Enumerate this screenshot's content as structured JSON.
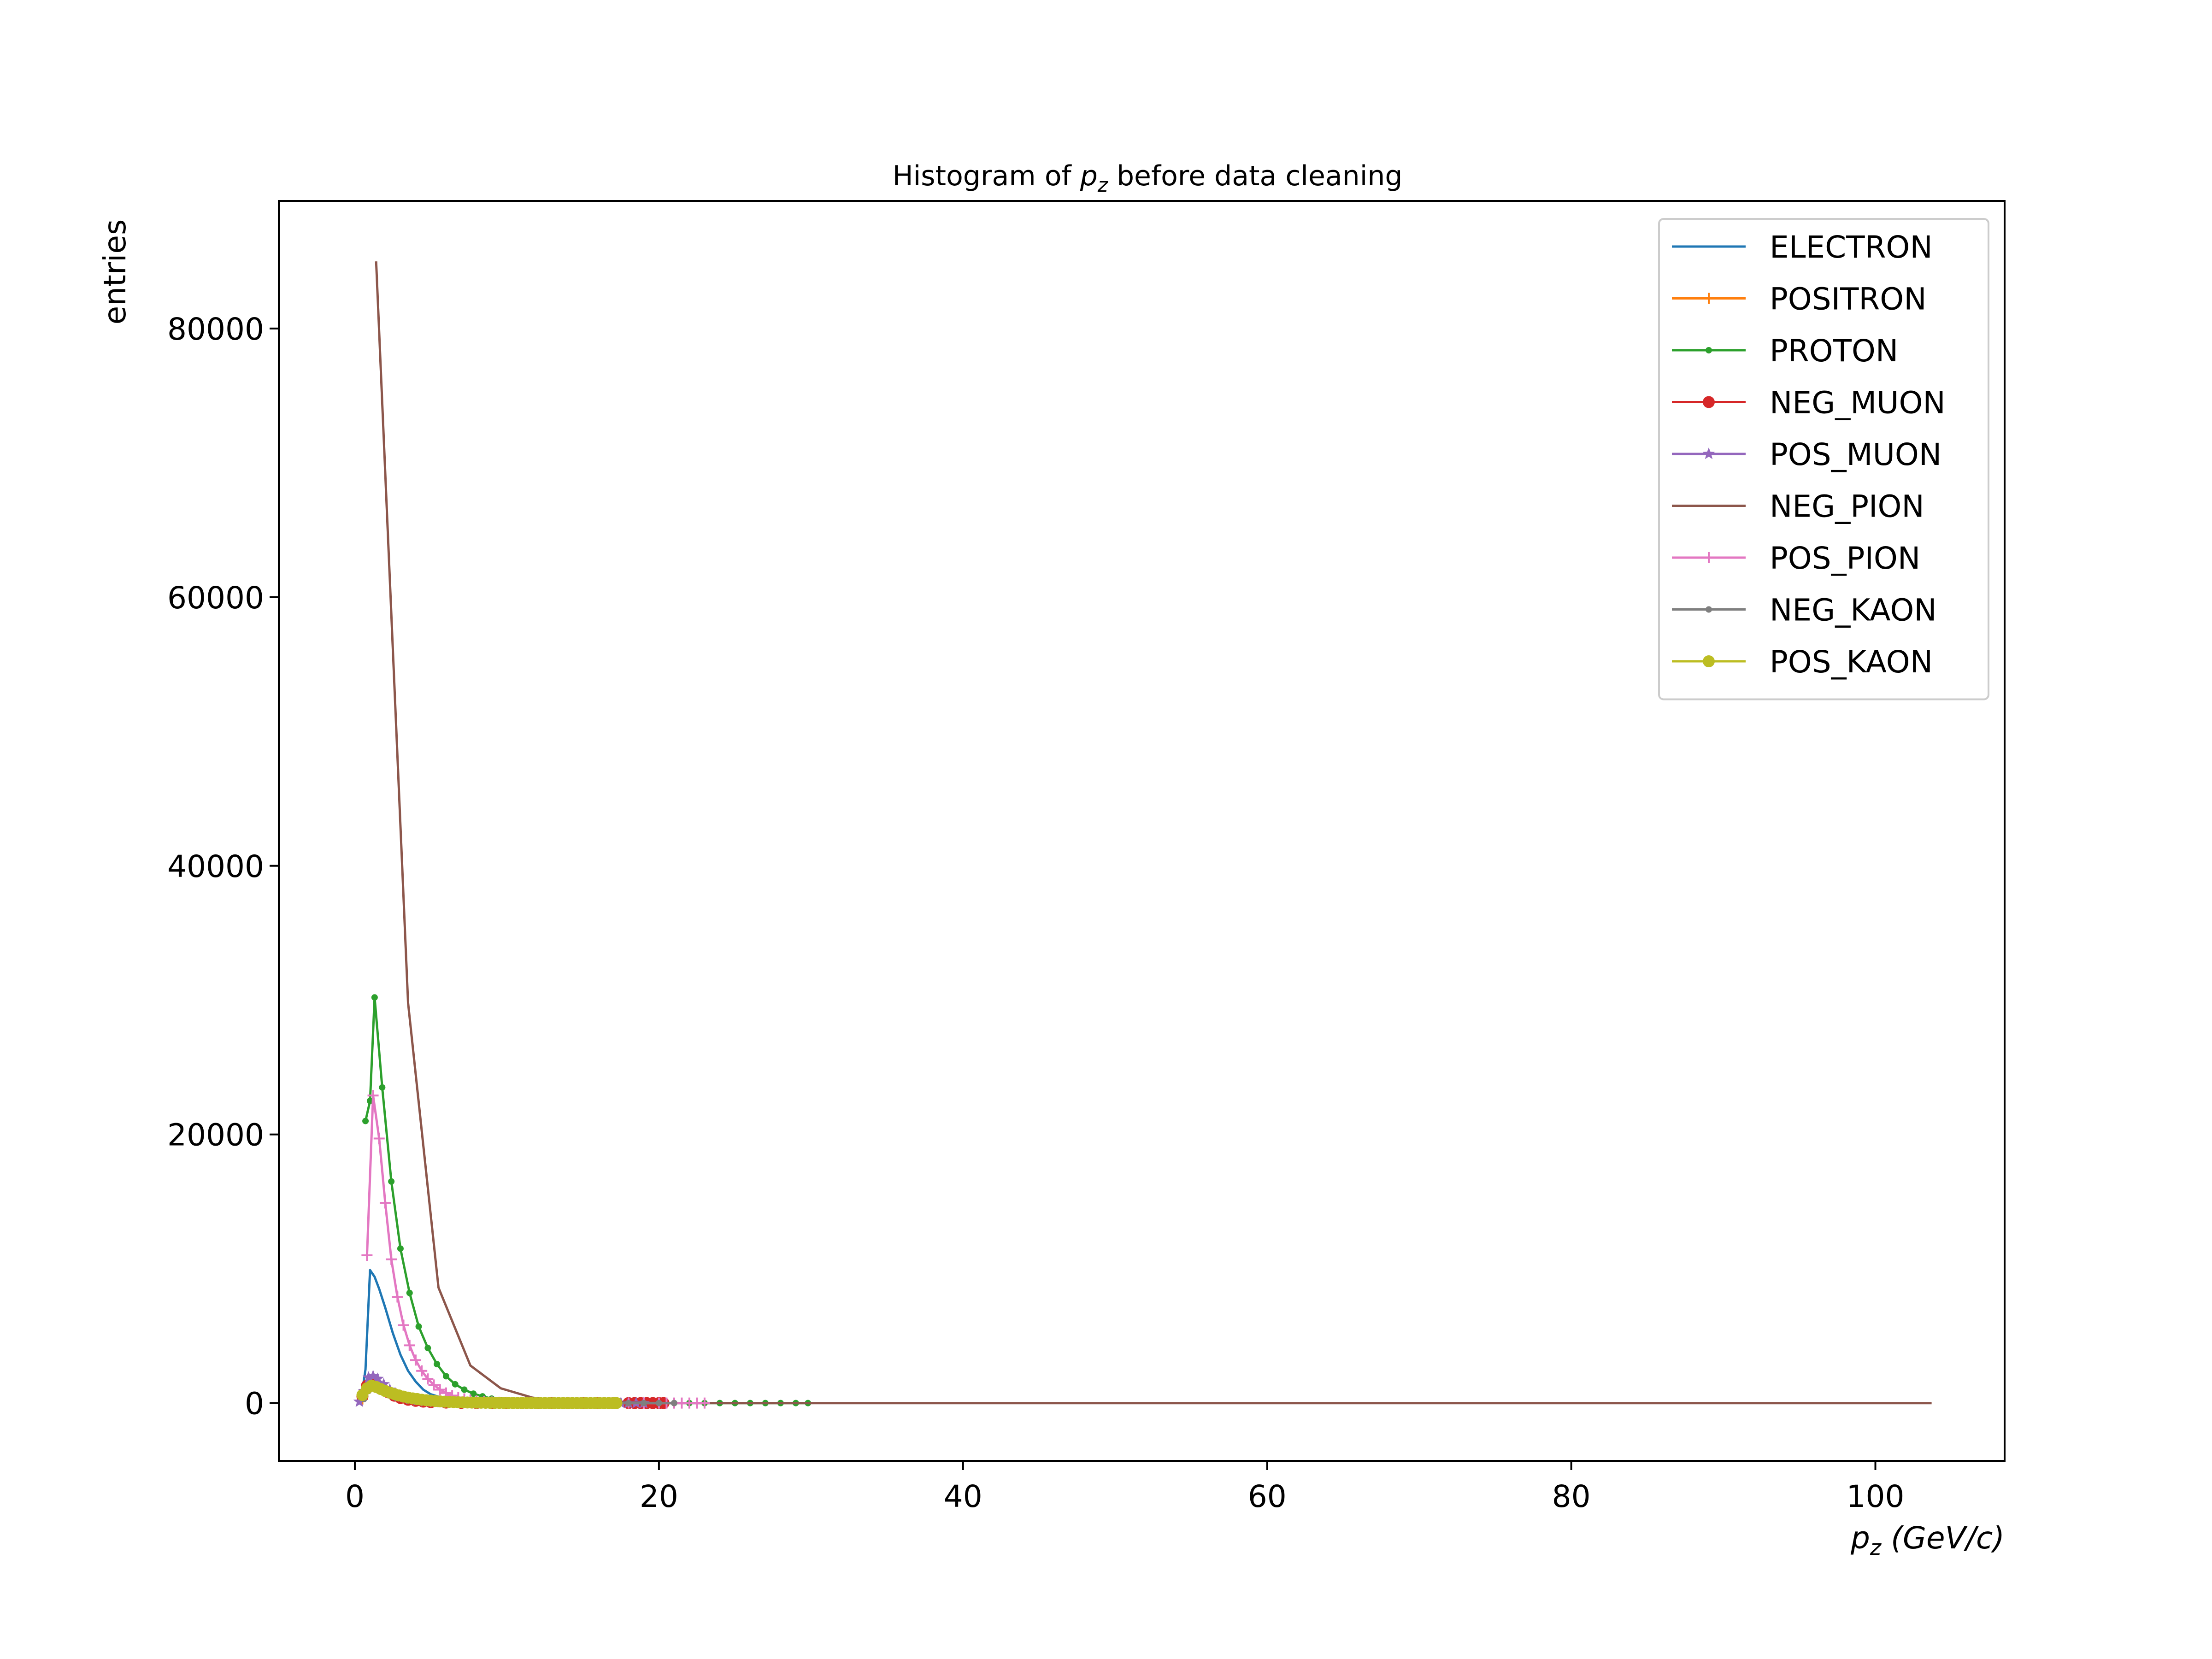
{
  "chart_data": {
    "type": "line",
    "title_main": "Histogram of ",
    "title_var": "p",
    "title_sub": "z",
    "title_rest": " before data cleaning",
    "xlabel_var": "p",
    "xlabel_sub": "z",
    "xlabel_unit": " (GeV/c)",
    "ylabel": "entries",
    "xlim": [
      -5,
      108.5
    ],
    "ylim": [
      -4300,
      89500
    ],
    "xticks": [
      "0",
      "20",
      "40",
      "60",
      "80",
      "100"
    ],
    "yticks": [
      "0",
      "20000",
      "40000",
      "60000",
      "80000"
    ],
    "legend_position": "upper right",
    "grid": false,
    "series": [
      {
        "name": "ELECTRON",
        "color": "#1f77b4",
        "marker": "none",
        "points": [
          [
            0.4,
            200
          ],
          [
            0.7,
            2500
          ],
          [
            1.0,
            9900
          ],
          [
            1.3,
            9400
          ],
          [
            1.6,
            8500
          ],
          [
            2.0,
            7100
          ],
          [
            2.5,
            5200
          ],
          [
            3.0,
            3600
          ],
          [
            3.5,
            2400
          ],
          [
            4.0,
            1600
          ],
          [
            4.5,
            1000
          ],
          [
            5.0,
            650
          ],
          [
            6.0,
            300
          ],
          [
            7.0,
            150
          ],
          [
            8.0,
            80
          ],
          [
            9.0,
            40
          ],
          [
            10.0,
            20
          ],
          [
            12.0,
            10
          ],
          [
            14.0,
            5
          ],
          [
            16.0,
            0
          ],
          [
            20.0,
            0
          ]
        ]
      },
      {
        "name": "POSITRON",
        "color": "#ff7f0e",
        "marker": "plus",
        "points": [
          [
            0.5,
            300
          ],
          [
            1.0,
            1600
          ],
          [
            1.5,
            1300
          ],
          [
            2.0,
            900
          ],
          [
            2.5,
            600
          ],
          [
            3.0,
            380
          ],
          [
            3.5,
            250
          ],
          [
            4.0,
            160
          ],
          [
            5.0,
            80
          ],
          [
            6.0,
            40
          ],
          [
            7.0,
            20
          ],
          [
            8.0,
            10
          ],
          [
            10.0,
            5
          ],
          [
            12.0,
            0
          ],
          [
            14.0,
            0
          ],
          [
            16.0,
            0
          ],
          [
            18.0,
            0
          ],
          [
            20.0,
            0
          ]
        ]
      },
      {
        "name": "PROTON",
        "color": "#2ca02c",
        "marker": "dot",
        "points": [
          [
            0.7,
            21000
          ],
          [
            1.0,
            22500
          ],
          [
            1.3,
            30200
          ],
          [
            1.8,
            23500
          ],
          [
            2.4,
            16500
          ],
          [
            3.0,
            11500
          ],
          [
            3.6,
            8200
          ],
          [
            4.2,
            5700
          ],
          [
            4.8,
            4100
          ],
          [
            5.4,
            2900
          ],
          [
            6.0,
            2000
          ],
          [
            6.6,
            1400
          ],
          [
            7.2,
            1000
          ],
          [
            7.8,
            700
          ],
          [
            8.4,
            500
          ],
          [
            9.0,
            330
          ],
          [
            9.6,
            220
          ],
          [
            10.2,
            150
          ],
          [
            10.8,
            100
          ],
          [
            11.4,
            70
          ],
          [
            12.0,
            50
          ],
          [
            13.0,
            30
          ],
          [
            14.0,
            15
          ],
          [
            15.0,
            8
          ],
          [
            16.0,
            5
          ],
          [
            17.0,
            3
          ],
          [
            18.0,
            2
          ],
          [
            19.0,
            0
          ],
          [
            20.0,
            0
          ],
          [
            21.0,
            0
          ],
          [
            22.0,
            0
          ],
          [
            23.0,
            0
          ],
          [
            24.0,
            0
          ],
          [
            25.0,
            0
          ],
          [
            26.0,
            0
          ],
          [
            27.0,
            0
          ],
          [
            28.0,
            0
          ],
          [
            29.0,
            0
          ],
          [
            29.8,
            0
          ]
        ]
      },
      {
        "name": "NEG_MUON",
        "color": "#d62728",
        "marker": "bigdot",
        "points": [
          [
            0.5,
            500
          ],
          [
            0.8,
            1300
          ],
          [
            1.1,
            1600
          ],
          [
            1.4,
            1400
          ],
          [
            1.8,
            1100
          ],
          [
            2.2,
            800
          ],
          [
            2.6,
            550
          ],
          [
            3.0,
            380
          ],
          [
            3.5,
            250
          ],
          [
            4.0,
            170
          ],
          [
            4.5,
            110
          ],
          [
            5.0,
            70
          ],
          [
            6.0,
            35
          ],
          [
            7.0,
            15
          ],
          [
            8.0,
            8
          ],
          [
            9.0,
            4
          ],
          [
            10.0,
            2
          ],
          [
            11.0,
            0
          ],
          [
            12.0,
            0
          ],
          [
            13.0,
            0
          ],
          [
            14.0,
            0
          ],
          [
            15.0,
            0
          ],
          [
            16.0,
            0
          ],
          [
            17.0,
            0
          ],
          [
            18.0,
            0
          ],
          [
            18.4,
            0
          ],
          [
            18.8,
            0
          ],
          [
            19.2,
            0
          ],
          [
            19.6,
            0
          ],
          [
            20.0,
            0
          ],
          [
            20.3,
            0
          ]
        ]
      },
      {
        "name": "POS_MUON",
        "color": "#9467bd",
        "marker": "star",
        "points": [
          [
            0.3,
            100
          ],
          [
            0.6,
            900
          ],
          [
            0.9,
            1900
          ],
          [
            1.2,
            2000
          ],
          [
            1.5,
            1800
          ],
          [
            1.9,
            1400
          ],
          [
            2.3,
            1000
          ],
          [
            2.7,
            700
          ],
          [
            3.1,
            480
          ],
          [
            3.6,
            300
          ],
          [
            4.1,
            190
          ],
          [
            4.6,
            120
          ],
          [
            5.2,
            70
          ],
          [
            6.0,
            35
          ],
          [
            7.0,
            15
          ],
          [
            8.0,
            8
          ],
          [
            9.0,
            4
          ],
          [
            10.0,
            2
          ],
          [
            11.0,
            0
          ],
          [
            12.0,
            0
          ],
          [
            13.0,
            0
          ],
          [
            14.0,
            0
          ],
          [
            15.0,
            0
          ],
          [
            16.0,
            0
          ],
          [
            17.0,
            0
          ],
          [
            17.5,
            0
          ],
          [
            18.0,
            0
          ],
          [
            18.5,
            0
          ],
          [
            19.0,
            0
          ]
        ]
      },
      {
        "name": "NEG_PION",
        "color": "#8c564b",
        "marker": "none",
        "points": [
          [
            1.4,
            85000
          ],
          [
            3.5,
            29800
          ],
          [
            5.5,
            8600
          ],
          [
            7.6,
            2800
          ],
          [
            9.6,
            1100
          ],
          [
            11.7,
            400
          ],
          [
            13.7,
            150
          ],
          [
            15.8,
            60
          ],
          [
            20.0,
            10
          ],
          [
            25.0,
            0
          ],
          [
            30.0,
            0
          ],
          [
            40.0,
            0
          ],
          [
            60.0,
            0
          ],
          [
            80.0,
            0
          ],
          [
            103.7,
            0
          ]
        ]
      },
      {
        "name": "POS_PION",
        "color": "#e377c2",
        "marker": "plus",
        "points": [
          [
            0.8,
            11000
          ],
          [
            1.2,
            22900
          ],
          [
            1.6,
            19700
          ],
          [
            2.0,
            14900
          ],
          [
            2.4,
            10700
          ],
          [
            2.8,
            7900
          ],
          [
            3.2,
            5800
          ],
          [
            3.6,
            4300
          ],
          [
            4.0,
            3200
          ],
          [
            4.4,
            2400
          ],
          [
            4.8,
            1800
          ],
          [
            5.2,
            1350
          ],
          [
            5.6,
            1000
          ],
          [
            6.0,
            750
          ],
          [
            6.4,
            560
          ],
          [
            6.8,
            420
          ],
          [
            7.2,
            310
          ],
          [
            7.6,
            230
          ],
          [
            8.0,
            170
          ],
          [
            8.5,
            120
          ],
          [
            9.0,
            85
          ],
          [
            9.5,
            60
          ],
          [
            10.0,
            42
          ],
          [
            11.0,
            20
          ],
          [
            12.0,
            10
          ],
          [
            13.0,
            5
          ],
          [
            14.0,
            3
          ],
          [
            15.0,
            2
          ],
          [
            16.0,
            1
          ],
          [
            17.0,
            0
          ],
          [
            18.0,
            0
          ],
          [
            19.0,
            0
          ],
          [
            20.0,
            0
          ],
          [
            20.5,
            0
          ],
          [
            21.0,
            0
          ],
          [
            21.5,
            0
          ],
          [
            22.0,
            0
          ],
          [
            22.5,
            0
          ],
          [
            23.0,
            0
          ]
        ]
      },
      {
        "name": "NEG_KAON",
        "color": "#7f7f7f",
        "marker": "dot",
        "points": [
          [
            0.6,
            300
          ],
          [
            0.9,
            900
          ],
          [
            1.2,
            1100
          ],
          [
            1.5,
            950
          ],
          [
            1.9,
            750
          ],
          [
            2.3,
            560
          ],
          [
            2.7,
            400
          ],
          [
            3.1,
            290
          ],
          [
            3.5,
            200
          ],
          [
            4.0,
            130
          ],
          [
            4.5,
            85
          ],
          [
            5.0,
            55
          ],
          [
            6.0,
            25
          ],
          [
            7.0,
            12
          ],
          [
            8.0,
            6
          ],
          [
            9.0,
            3
          ],
          [
            10.0,
            1
          ],
          [
            11.0,
            0
          ],
          [
            12.0,
            0
          ],
          [
            13.0,
            0
          ],
          [
            14.0,
            0
          ],
          [
            15.0,
            0
          ],
          [
            16.0,
            0
          ],
          [
            17.0,
            0
          ],
          [
            18.0,
            0
          ],
          [
            19.0,
            0
          ],
          [
            20.0,
            0
          ],
          [
            21.0,
            0
          ]
        ]
      },
      {
        "name": "POS_KAON",
        "color": "#bcbd22",
        "marker": "bigdot",
        "points": [
          [
            0.5,
            600
          ],
          [
            0.8,
            1100
          ],
          [
            1.1,
            1300
          ],
          [
            1.4,
            1200
          ],
          [
            1.7,
            1050
          ],
          [
            2.0,
            900
          ],
          [
            2.3,
            780
          ],
          [
            2.6,
            670
          ],
          [
            2.9,
            570
          ],
          [
            3.2,
            480
          ],
          [
            3.5,
            410
          ],
          [
            3.8,
            350
          ],
          [
            4.1,
            300
          ],
          [
            4.4,
            250
          ],
          [
            4.7,
            210
          ],
          [
            5.0,
            180
          ],
          [
            5.3,
            150
          ],
          [
            5.6,
            125
          ],
          [
            5.9,
            105
          ],
          [
            6.2,
            88
          ],
          [
            6.5,
            74
          ],
          [
            6.8,
            62
          ],
          [
            7.1,
            52
          ],
          [
            7.4,
            44
          ],
          [
            7.7,
            37
          ],
          [
            8.0,
            31
          ],
          [
            8.3,
            26
          ],
          [
            8.6,
            22
          ],
          [
            8.9,
            18
          ],
          [
            9.2,
            15
          ],
          [
            9.5,
            13
          ],
          [
            9.8,
            11
          ],
          [
            10.1,
            9
          ],
          [
            10.4,
            8
          ],
          [
            10.7,
            6
          ],
          [
            11.0,
            5
          ],
          [
            11.3,
            4
          ],
          [
            11.6,
            4
          ],
          [
            11.9,
            3
          ],
          [
            12.2,
            3
          ],
          [
            12.5,
            2
          ],
          [
            12.8,
            2
          ],
          [
            13.1,
            2
          ],
          [
            13.4,
            1
          ],
          [
            13.7,
            1
          ],
          [
            14.0,
            1
          ],
          [
            14.3,
            1
          ],
          [
            14.6,
            1
          ],
          [
            14.9,
            0
          ],
          [
            15.2,
            0
          ],
          [
            15.5,
            0
          ],
          [
            15.8,
            0
          ],
          [
            16.1,
            0
          ],
          [
            16.4,
            0
          ],
          [
            16.7,
            0
          ],
          [
            17.0,
            0
          ],
          [
            17.2,
            0
          ]
        ]
      }
    ]
  }
}
